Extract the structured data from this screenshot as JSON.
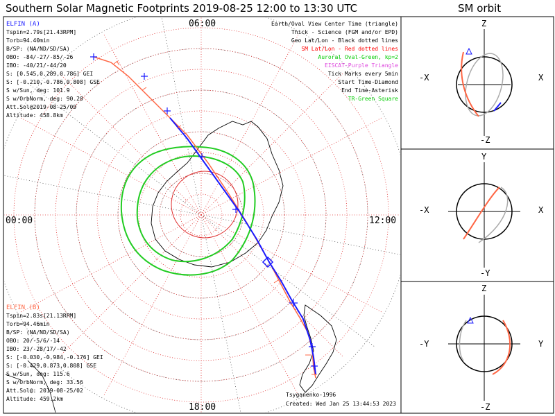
{
  "header": {
    "title": "Southern Solar Magnetic Footprints 2019-08-25 12:00 to 13:30 UTC",
    "orbit_title": "SM orbit"
  },
  "map": {
    "time_labels": {
      "top": "06:00",
      "bottom": "18:00",
      "left": "00:00",
      "right": "12:00"
    }
  },
  "elfin_a": {
    "name": "ELFIN (A)",
    "color": "#1a1aff",
    "lines": [
      "Tspin=2.79s[21.43RPM]",
      "Torb=94.40min",
      "B/SP: (NA/ND/SD/SA)",
      "OBO: -84/-27/-85/-26",
      "IBO: -40/21/-44/20",
      "S: [0.545,0.289,0.786] GEI",
      "S: [-0.210,-0.786,0.808] GSE",
      "S w/Sun, deg: 101.9",
      "S w/OrbNorm, deg: 90.20",
      "Att.Sol@2019-08-25/09",
      "Altitude: 458.8km"
    ]
  },
  "elfin_b": {
    "name": "ELFIN (B)",
    "color": "#ff6644",
    "lines": [
      "Tspin=2.83s[21.13RPM]",
      "Torb=94.46min",
      "B/SP: (NA/ND/SD/SA)",
      "OBO: 20/-5/6/-14",
      "IBO: 23/-28/17/-42",
      "S: [-0.030,-0.984,-0.176] GEI",
      "S: [-0.429,0.873,0.808] GSE",
      "S w/Sun, deg: 115.6",
      "S w/OrbNorm, deg: 33.56",
      "Att.Sol@: 2019-08-25/02",
      "Altitude: 459.2km"
    ]
  },
  "legend": [
    {
      "text": "Earth/Oval View Center Time (triangle)",
      "color": "#000000"
    },
    {
      "text": "Thick - Science (FGM and/or EPD)",
      "color": "#000000"
    },
    {
      "text": "Geo Lat/Lon - Black dotted lines",
      "color": "#000000"
    },
    {
      "text": "SM Lat/Lon - Red dotted lines",
      "color": "#ff0000"
    },
    {
      "text": "Auroral Oval-Green, kp=2",
      "color": "#00cc00"
    },
    {
      "text": "EISCAT-Purple Triangle",
      "color": "#dd44dd"
    },
    {
      "text": "Tick Marks every 5min",
      "color": "#000000"
    },
    {
      "text": "Start Time-Diamond",
      "color": "#000000"
    },
    {
      "text": "End Time-Asterisk",
      "color": "#000000"
    },
    {
      "text": "TR-Green Square",
      "color": "#00cc00"
    }
  ],
  "credits": {
    "author": "Tsyganenko-1996",
    "created": "Created: Wed Jan 25 13:44:53 2023"
  },
  "orbit_panels": [
    {
      "top": "Z",
      "bottom": "-Z",
      "left": "-X",
      "right": "X"
    },
    {
      "top": "Y",
      "bottom": "-Y",
      "left": "-X",
      "right": "X"
    },
    {
      "top": "Z",
      "bottom": "-Z",
      "left": "-Y",
      "right": "Y"
    }
  ]
}
